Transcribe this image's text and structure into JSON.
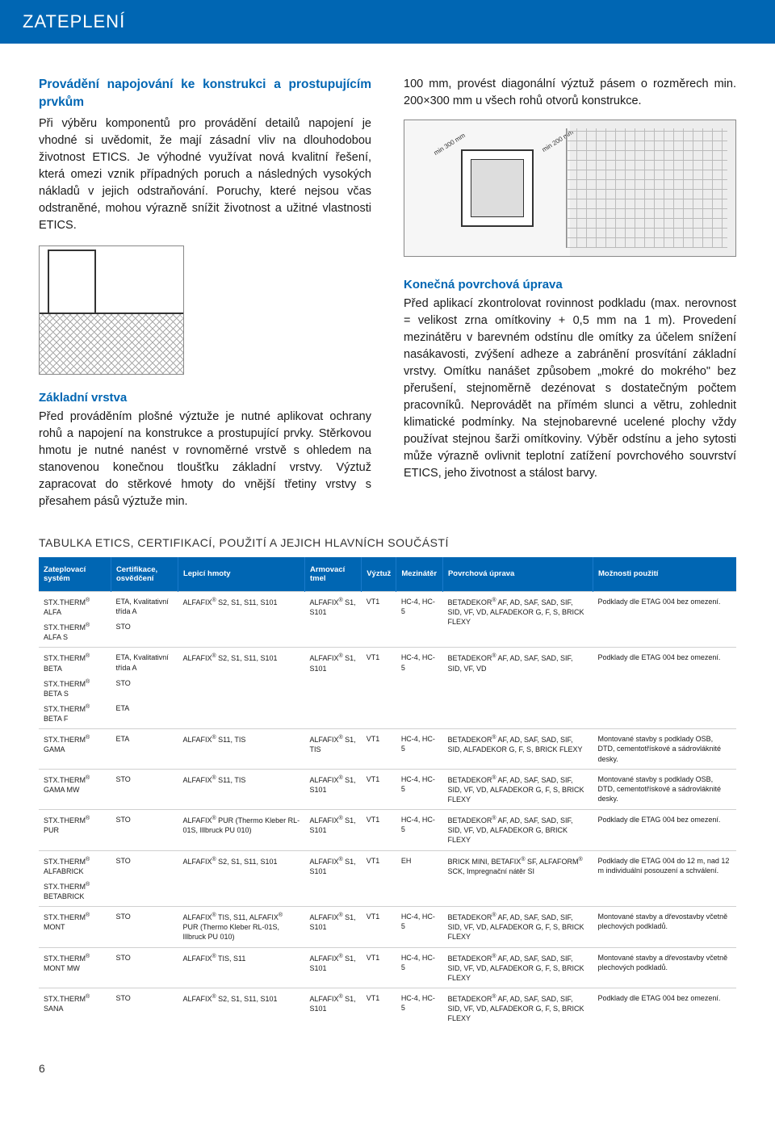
{
  "header": {
    "title": "ZATEPLENÍ"
  },
  "leftCol": {
    "h1": "Provádění napojování ke konstrukci a prostupujícím prvkům",
    "p1": "Při výběru komponentů pro provádění detailů napojení je vhodné si uvědomit, že mají zásadní vliv na dlouhodobou životnost ETICS. Je výhodné využívat nová kvalitní řešení, která omezi vznik případných poruch a následných vysokých nákladů v jejich odstraňování. Poruchy, které nejsou včas odstraněné, mohou výrazně snížit životnost a užitné vlastnosti ETICS.",
    "h2": "Základní vrstva",
    "p2": "Před prováděním plošné výztuže je nutné aplikovat ochrany rohů a napojení na konstrukce a prostupující prvky. Stěrkovou hmotu je nutné nanést v rovnoměrné vrstvě s ohledem na stanovenou konečnou tloušťku základní vrstvy. Výztuž zapracovat do stěrkové hmoty do vnější třetiny vrstvy s přesahem pásů výztuže min."
  },
  "rightCol": {
    "p0": "100 mm, provést diagonální výztuž pásem o rozměrech min. 200×300 mm u všech rohů otvorů konstrukce.",
    "lbl1": "min 300 mm",
    "lbl2": "min 200 mm",
    "h1": "Konečná povrchová úprava",
    "p1": "Před aplikací zkontrolovat rovinnost podkladu (max. nerovnost = velikost zrna omítkoviny + 0,5 mm na 1 m). Provedení mezinátěru v barevném odstínu dle omítky za účelem snížení nasákavosti, zvýšení adheze a zabránění prosvítání základní vrstvy. Omítku nanášet způsobem „mokré do mokrého\" bez přerušení, stejnoměrně dezénovat s dostatečným počtem pracovníků. Neprovádět na přímém slunci a větru, zohlednit klimatické podmínky. Na stejnobarevné ucelené plochy vždy používat stejnou šarži omítkoviny. Výběr odstínu a jeho sytosti může výrazně ovlivnit teplotní zatížení povrchového souvrství ETICS, jeho životnost a stálost barvy."
  },
  "tableTitle": "TABULKA ETICS, CERTIFIKACÍ, POUŽITÍ A JEJICH HLAVNÍCH SOUČÁSTÍ",
  "columns": [
    "Zateplovací systém",
    "Certifikace, osvědčení",
    "Lepicí hmoty",
    "Armovací tmel",
    "Výztuž",
    "Mezinátěr",
    "Povrchová úprava",
    "Možnosti použití"
  ],
  "rows": [
    {
      "sys": "STX.THERM® ALFA",
      "cert": "ETA, Kvalitativní třída A",
      "lep": "ALFAFIX® S2, S1, S11, S101",
      "arm": "ALFAFIX® S1, S101",
      "vy": "VT1",
      "mez": "HC-4, HC-5",
      "pov": "BETADEKOR® AF, AD, SAF, SAD, SIF, SID, VF, VD, ALFADEKOR G, F, S, BRICK FLEXY",
      "moz": "Podklady dle ETAG 004 bez omezení.",
      "rowspan": 2
    },
    {
      "sys": "STX.THERM® ALFA S",
      "cert": "STO",
      "sub": true
    },
    {
      "sys": "STX.THERM® BETA",
      "cert": "ETA, Kvalitativní třída A",
      "lep": "ALFAFIX® S2, S1, S11, S101",
      "arm": "ALFAFIX® S1, S101",
      "vy": "VT1",
      "mez": "HC-4, HC-5",
      "pov": "BETADEKOR® AF, AD, SAF, SAD, SIF, SID, VF, VD",
      "moz": "Podklady dle ETAG 004 bez omezení.",
      "rowspan": 3
    },
    {
      "sys": "STX.THERM® BETA S",
      "cert": "STO",
      "sub": true
    },
    {
      "sys": "STX.THERM® BETA F",
      "cert": "ETA",
      "sub": true
    },
    {
      "sys": "STX.THERM® GAMA",
      "cert": "ETA",
      "lep": "ALFAFIX® S11, TIS",
      "arm": "ALFAFIX® S1, TIS",
      "vy": "VT1",
      "mez": "HC-4, HC-5",
      "pov": "BETADEKOR® AF, AD, SAF, SAD, SIF, SID, ALFADEKOR G, F, S, BRICK FLEXY",
      "moz": "Montované stavby s podklady OSB, DTD, cementotřískové a sádrovláknité desky."
    },
    {
      "sys": "STX.THERM® GAMA MW",
      "cert": "STO",
      "lep": "ALFAFIX® S11, TIS",
      "arm": "ALFAFIX® S1, S101",
      "vy": "VT1",
      "mez": "HC-4, HC-5",
      "pov": "BETADEKOR® AF, AD, SAF, SAD, SIF, SID, VF, VD, ALFADEKOR G, F, S, BRICK FLEXY",
      "moz": "Montované stavby s podklady OSB, DTD, cementotřískové a sádrovláknité desky."
    },
    {
      "sys": "STX.THERM® PUR",
      "cert": "STO",
      "lep": "ALFAFIX® PUR (Thermo Kleber RL-01S, Illbruck PU 010)",
      "arm": "ALFAFIX® S1, S101",
      "vy": "VT1",
      "mez": "HC-4, HC-5",
      "pov": "BETADEKOR® AF, AD, SAF, SAD, SIF, SID, VF, VD, ALFADEKOR G, BRICK FLEXY",
      "moz": "Podklady dle ETAG 004 bez omezení."
    },
    {
      "sys": "STX.THERM® ALFABRICK",
      "cert": "STO",
      "lep": "ALFAFIX® S2, S1, S11, S101",
      "arm": "ALFAFIX® S1, S101",
      "vy": "VT1",
      "mez": "EH",
      "pov": "BRICK MINI, BETAFIX® SF, ALFAFORM® SCK, Impregnační nátěr SI",
      "moz": "Podklady dle ETAG 004 do 12 m, nad 12 m individuální posouzení a schválení.",
      "rowspan": 2
    },
    {
      "sys": "STX.THERM® BETABRICK",
      "cert": "",
      "sub": true
    },
    {
      "sys": "STX.THERM® MONT",
      "cert": "STO",
      "lep": "ALFAFIX® TIS, S11, ALFAFIX® PUR (Thermo Kleber RL-01S, Illbruck PU 010)",
      "arm": "ALFAFIX® S1, S101",
      "vy": "VT1",
      "mez": "HC-4, HC-5",
      "pov": "BETADEKOR® AF, AD, SAF, SAD, SIF, SID, VF, VD, ALFADEKOR G, F, S, BRICK FLEXY",
      "moz": "Montované stavby a dřevostavby včetně plechových podkladů."
    },
    {
      "sys": "STX.THERM® MONT MW",
      "cert": "STO",
      "lep": "ALFAFIX® TIS, S11",
      "arm": "ALFAFIX® S1, S101",
      "vy": "VT1",
      "mez": "HC-4, HC-5",
      "pov": "BETADEKOR® AF, AD, SAF, SAD, SIF, SID, VF, VD, ALFADEKOR G, F, S, BRICK FLEXY",
      "moz": "Montované stavby a dřevostavby včetně plechových podkladů."
    },
    {
      "sys": "STX.THERM® SANA",
      "cert": "STO",
      "lep": "ALFAFIX® S2, S1, S11, S101",
      "arm": "ALFAFIX® S1, S101",
      "vy": "VT1",
      "mez": "HC-4, HC-5",
      "pov": "BETADEKOR® AF, AD, SAF, SAD, SIF, SID, VF, VD, ALFADEKOR G, F, S, BRICK FLEXY",
      "moz": "Podklady dle ETAG 004 bez omezení."
    }
  ],
  "pageNum": "6",
  "colors": {
    "brand": "#0066b3",
    "text": "#1a1a1a",
    "border": "#d0d0d0"
  }
}
